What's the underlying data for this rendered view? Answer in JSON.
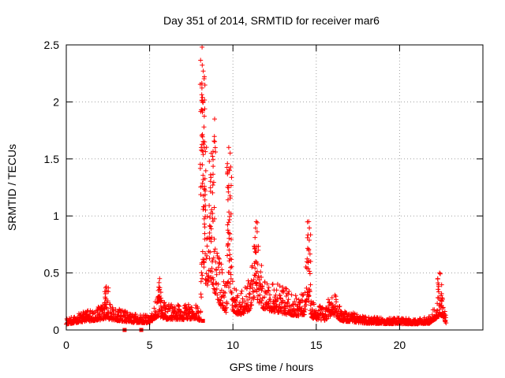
{
  "chart_data": {
    "type": "scatter",
    "title": "Day 351 of 2014, SRMTID for receiver mar6",
    "xlabel": "GPS time / hours",
    "ylabel": "SRMTID / TECUs",
    "xlim": [
      0,
      25
    ],
    "ylim": [
      0,
      2.5
    ],
    "xticks": [
      0,
      5,
      10,
      15,
      20
    ],
    "xtick_labels": [
      "0",
      "5",
      "10",
      "15",
      "20"
    ],
    "yticks": [
      0,
      0.5,
      1,
      1.5,
      2,
      2.5
    ],
    "ytick_labels": [
      "0",
      "0.5",
      "1",
      "1.5",
      "2",
      "2.5"
    ],
    "grid": true,
    "marker": "+",
    "color": "#ff0000",
    "series": [
      {
        "name": "SRMTID",
        "profile_hours": [
          0,
          1,
          2,
          2.3,
          3,
          4,
          5,
          5.5,
          6,
          7,
          7.8,
          8.05,
          8.2,
          8.4,
          8.6,
          8.8,
          9.0,
          9.3,
          9.6,
          9.8,
          10.0,
          10.5,
          11.0,
          11.3,
          11.8,
          12.3,
          13,
          13.6,
          14,
          14.3,
          14.5,
          14.7,
          15,
          15.5,
          16,
          16.5,
          17,
          17.5,
          18,
          19,
          20,
          21,
          21.8,
          22.2,
          22.5,
          22.8
        ],
        "profile_srmtid": [
          0.06,
          0.12,
          0.16,
          0.2,
          0.15,
          0.1,
          0.09,
          0.25,
          0.18,
          0.17,
          0.2,
          0.13,
          1.7,
          0.9,
          1.25,
          1.0,
          0.7,
          0.5,
          0.35,
          1.1,
          0.32,
          0.3,
          0.4,
          0.75,
          0.45,
          0.38,
          0.32,
          0.28,
          0.25,
          0.3,
          0.8,
          0.22,
          0.18,
          0.15,
          0.3,
          0.14,
          0.12,
          0.1,
          0.08,
          0.07,
          0.07,
          0.06,
          0.08,
          0.2,
          0.3,
          0.07
        ],
        "peaks": [
          {
            "hour": 8.15,
            "srmtid": 2.48
          },
          {
            "hour": 8.22,
            "srmtid": 2.27
          },
          {
            "hour": 8.18,
            "srmtid": 2.0
          },
          {
            "hour": 8.3,
            "srmtid": 1.65
          },
          {
            "hour": 8.9,
            "srmtid": 1.85
          },
          {
            "hour": 8.7,
            "srmtid": 1.55
          },
          {
            "hour": 9.75,
            "srmtid": 1.6
          },
          {
            "hour": 9.8,
            "srmtid": 1.4
          },
          {
            "hour": 11.4,
            "srmtid": 0.95
          },
          {
            "hour": 14.55,
            "srmtid": 0.95
          },
          {
            "hour": 22.4,
            "srmtid": 0.5
          },
          {
            "hour": 5.6,
            "srmtid": 0.45
          },
          {
            "hour": 2.4,
            "srmtid": 0.38
          }
        ]
      }
    ],
    "low_points": [
      {
        "hour": 3.5,
        "srmtid": 0.0
      },
      {
        "hour": 4.5,
        "srmtid": 0.0
      },
      {
        "hour": 8.2,
        "srmtid": 0.08
      }
    ]
  }
}
